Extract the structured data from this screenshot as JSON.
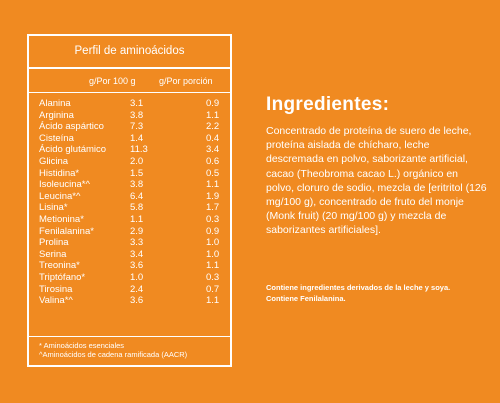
{
  "table": {
    "title": "Perfil de aminoácidos",
    "col1": "g/Por 100 g",
    "col2": "g/Por porción",
    "rows": [
      {
        "name": "Alanina",
        "v1": "3.1",
        "v2": "0.9"
      },
      {
        "name": "Arginina",
        "v1": "3.8",
        "v2": "1.1"
      },
      {
        "name": "Ácido aspártico",
        "v1": "7.3",
        "v2": "2.2"
      },
      {
        "name": "Cisteína",
        "v1": "1.4",
        "v2": "0.4"
      },
      {
        "name": "Ácido glutámico",
        "v1": "11.3",
        "v2": "3.4"
      },
      {
        "name": "Glicina",
        "v1": "2.0",
        "v2": "0.6"
      },
      {
        "name": "Histidina*",
        "v1": "1.5",
        "v2": "0.5"
      },
      {
        "name": "Isoleucina*^",
        "v1": "3.8",
        "v2": "1.1"
      },
      {
        "name": "Leucina*^",
        "v1": "6.4",
        "v2": "1.9"
      },
      {
        "name": "Lisina*",
        "v1": "5.8",
        "v2": "1.7"
      },
      {
        "name": "Metionina*",
        "v1": "1.1",
        "v2": "0.3"
      },
      {
        "name": "Fenilalanina*",
        "v1": "2.9",
        "v2": "0.9"
      },
      {
        "name": "Prolina",
        "v1": "3.3",
        "v2": "1.0"
      },
      {
        "name": "Serina",
        "v1": "3.4",
        "v2": "1.0"
      },
      {
        "name": "Treonina*",
        "v1": "3.6",
        "v2": "1.1"
      },
      {
        "name": "Triptófano*",
        "v1": "1.0",
        "v2": "0.3"
      },
      {
        "name": "Tirosina",
        "v1": "2.4",
        "v2": "0.7"
      },
      {
        "name": "Valina*^",
        "v1": "3.6",
        "v2": "1.1"
      }
    ],
    "footnote1": "* Aminoácidos esenciales",
    "footnote2": "^Aminoácidos de cadena ramificada (AACR)"
  },
  "ingredients": {
    "title": "Ingredientes:",
    "body": "Concentrado de proteína de suero de leche, proteína aislada de chícharo, leche descremada en polvo, saborizante artificial, cacao (Theobroma cacao L.) orgánico en polvo, cloruro de sodio, mezcla de [eritritol (126 mg/100 g), concentrado de fruto del monje (Monk fruit) (20 mg/100 g) y mezcla de saborizantes artificiales].",
    "note": "Contiene ingredientes derivados de la leche y soya. Contiene Fenilalanina."
  },
  "colors": {
    "background": "#F08A21",
    "text": "#FFFFFF"
  }
}
